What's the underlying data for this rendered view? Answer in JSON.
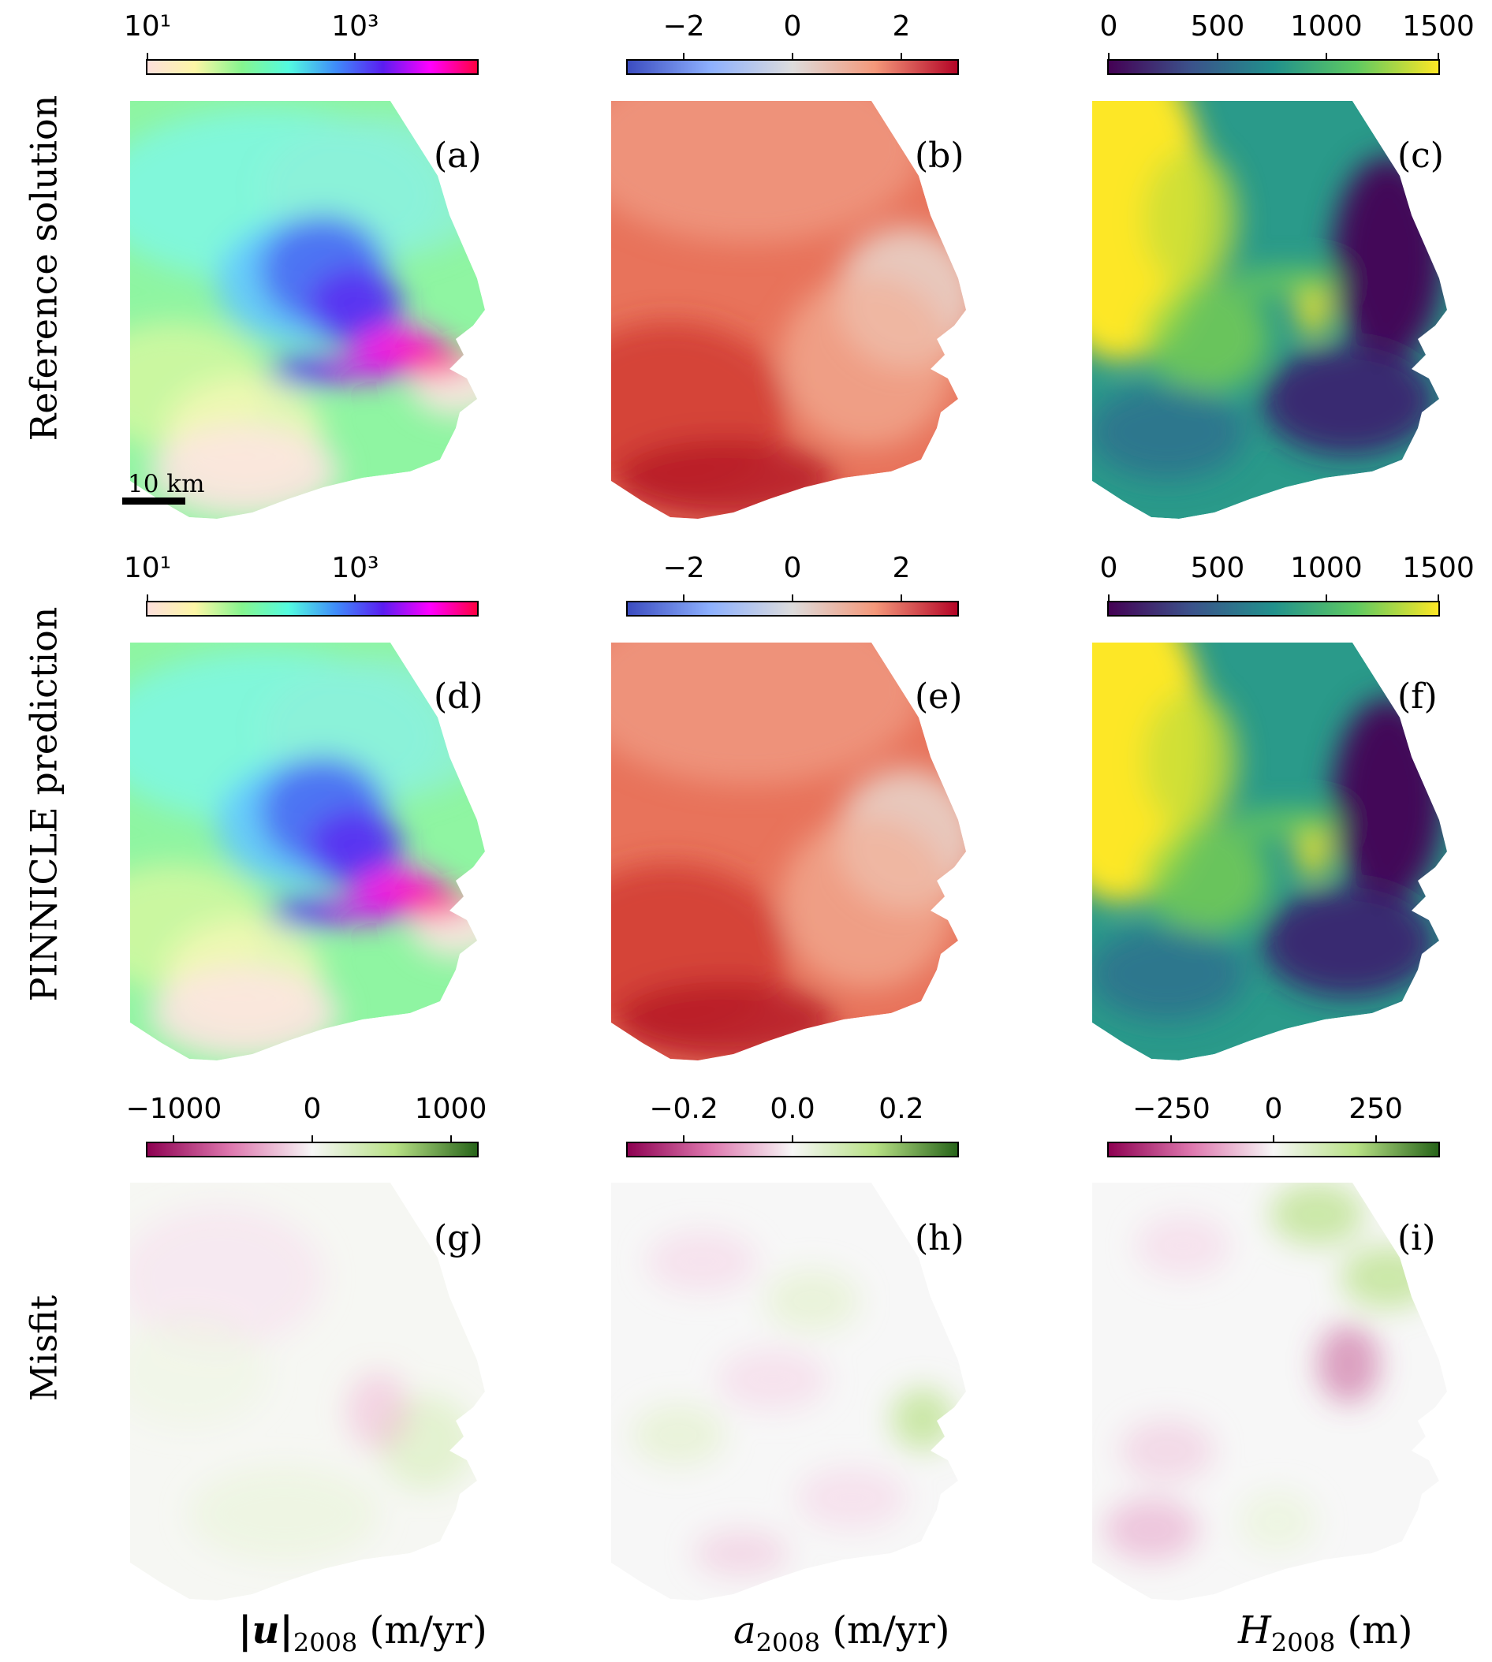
{
  "rows": [
    {
      "label": "Reference solution"
    },
    {
      "label": "PINNICLE prediction"
    },
    {
      "label": "Misfit"
    }
  ],
  "colorbars": {
    "a": {
      "ticks": [
        "10¹",
        "10³"
      ],
      "gradient": [
        "#fde0dc",
        "#fdf6a6",
        "#86f58f",
        "#53fbe0",
        "#3f8cfa",
        "#5a1df0",
        "#ff00ff",
        "#ff0040"
      ]
    },
    "b": {
      "ticks": [
        "−2",
        "0",
        "2"
      ],
      "gradient": [
        "#3b4cc0",
        "#8db0fe",
        "#dddcdc",
        "#f4987a",
        "#b40426"
      ]
    },
    "c": {
      "ticks": [
        "0",
        "500",
        "1000",
        "1500"
      ],
      "gradient": [
        "#440154",
        "#3b528b",
        "#21918c",
        "#5ec962",
        "#fde725"
      ]
    },
    "d": {
      "ticks": [
        "10¹",
        "10³"
      ],
      "gradient": [
        "#fde0dc",
        "#fdf6a6",
        "#86f58f",
        "#53fbe0",
        "#3f8cfa",
        "#5a1df0",
        "#ff00ff",
        "#ff0040"
      ]
    },
    "e": {
      "ticks": [
        "−2",
        "0",
        "2"
      ],
      "gradient": [
        "#3b4cc0",
        "#8db0fe",
        "#dddcdc",
        "#f4987a",
        "#b40426"
      ]
    },
    "f": {
      "ticks": [
        "0",
        "500",
        "1000",
        "1500"
      ],
      "gradient": [
        "#440154",
        "#3b528b",
        "#21918c",
        "#5ec962",
        "#fde725"
      ]
    },
    "g": {
      "ticks": [
        "−1000",
        "0",
        "1000"
      ],
      "gradient": [
        "#8e0152",
        "#de77ae",
        "#f7f7f7",
        "#b8e186",
        "#276419"
      ]
    },
    "h": {
      "ticks": [
        "−0.2",
        "0.0",
        "0.2"
      ],
      "gradient": [
        "#8e0152",
        "#de77ae",
        "#f7f7f7",
        "#b8e186",
        "#276419"
      ]
    },
    "i": {
      "ticks": [
        "−250",
        "0",
        "250"
      ],
      "gradient": [
        "#8e0152",
        "#de77ae",
        "#f7f7f7",
        "#b8e186",
        "#276419"
      ]
    }
  },
  "panels": {
    "a": {
      "label": "(a)"
    },
    "b": {
      "label": "(b)"
    },
    "c": {
      "label": "(c)"
    },
    "d": {
      "label": "(d)"
    },
    "e": {
      "label": "(e)"
    },
    "f": {
      "label": "(f)"
    },
    "g": {
      "label": "(g)"
    },
    "h": {
      "label": "(h)"
    },
    "i": {
      "label": "(i)"
    }
  },
  "scalebar": {
    "text": "10 km"
  },
  "columns": [
    {
      "var": "|u|",
      "sub": "2008",
      "unit": " (m/yr)"
    },
    {
      "var": "a",
      "sub": "2008",
      "unit": " (m/yr)"
    },
    {
      "var": "H",
      "sub": "2008",
      "unit": " (m)"
    }
  ]
}
